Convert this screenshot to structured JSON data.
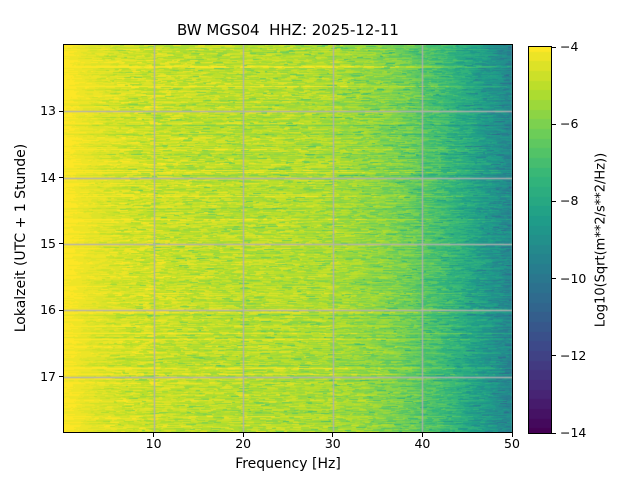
{
  "chart_data": {
    "type": "heatmap",
    "subtype": "spectrogram",
    "title": "BW MGS04  HHZ: 2025-12-11",
    "xlabel": "Frequency [Hz]",
    "ylabel": "Lokalzeit (UTC + 1 Stunde)",
    "colorbar_label": "Log10(Sqrt(m**2/s**2/Hz))",
    "xlim": [
      0,
      50
    ],
    "xticks": [
      10,
      20,
      30,
      40,
      50
    ],
    "ylim_hours": [
      12.0,
      17.835
    ],
    "yticks": [
      13,
      14,
      15,
      16,
      17
    ],
    "y_increases_downward": true,
    "grid": true,
    "colormap": "viridis",
    "clim": [
      -14,
      -4
    ],
    "colorbar_ticks": [
      -4,
      -6,
      -8,
      -10,
      -12,
      -14
    ],
    "colormap_stops": [
      "#440154",
      "#482878",
      "#3e4989",
      "#31688e",
      "#26828e",
      "#1f9e89",
      "#35b779",
      "#6ece58",
      "#b5de2b",
      "#fde725"
    ],
    "colors": {
      "background": "#ffffff",
      "text": "#000000",
      "grid": "#b0b0b0",
      "spine": "#000000"
    },
    "freq_profile": {
      "frequencies_hz": [
        0.2,
        1,
        2,
        4,
        7,
        10,
        15,
        20,
        25,
        30,
        34,
        38,
        42,
        46,
        50
      ],
      "mean_log10_sqrt_psd": [
        -4.05,
        -4.1,
        -4.25,
        -4.45,
        -4.6,
        -4.75,
        -4.95,
        -5.05,
        -5.1,
        -5.3,
        -5.6,
        -6.1,
        -7.0,
        -8.2,
        -9.4
      ]
    },
    "texture": {
      "row_noise_amplitude": 0.35,
      "dash_noise_amplitude": 0.55,
      "green_dash_chance": 0.08,
      "bright_row_chance": 0.05,
      "quantize_step": 0.25
    }
  }
}
